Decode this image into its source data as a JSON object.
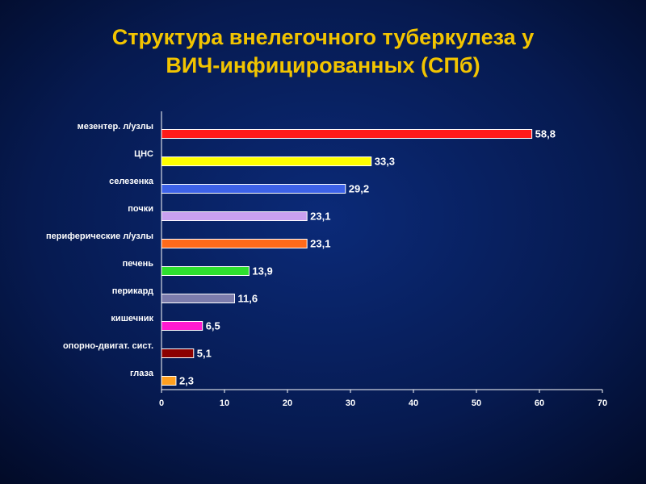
{
  "chart_data": {
    "type": "bar",
    "orientation": "horizontal",
    "title": [
      "Структура внелегочного туберкулеза у",
      "ВИЧ-инфицированных (СПб)"
    ],
    "categories": [
      "мезентер. л/узлы",
      "ЦНС",
      "селезенка",
      "почки",
      "периферические л/узлы",
      "печень",
      "перикард",
      "кишечник",
      "опорно-двигат. сист.",
      "глаза"
    ],
    "values": [
      58.8,
      33.3,
      29.2,
      23.1,
      23.1,
      13.9,
      11.6,
      6.5,
      5.1,
      2.3
    ],
    "value_labels": [
      "58,8",
      "33,3",
      "29,2",
      "23,1",
      "23,1",
      "13,9",
      "11,6",
      "6,5",
      "5,1",
      "2,3"
    ],
    "colors": [
      "#ff1a1a",
      "#ffff00",
      "#3d62e8",
      "#c9a0f0",
      "#ff6a1a",
      "#2ee02e",
      "#7c7cac",
      "#ff1ad0",
      "#8b0000",
      "#ffa020"
    ],
    "xlim": [
      0,
      70
    ],
    "xticks": [
      0,
      10,
      20,
      30,
      40,
      50,
      60,
      70
    ],
    "grid": false
  }
}
